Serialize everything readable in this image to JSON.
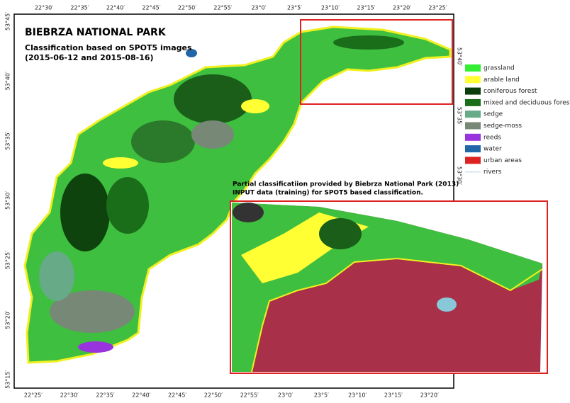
{
  "title": "BIEBRZA NATIONAL PARK",
  "subtitle": [
    "Classification based on SPOT5 images",
    "(2015-06-12 and 2015-08-16)"
  ],
  "legend": [
    {
      "label": "grassland",
      "color": "#33ee33"
    },
    {
      "label": "arable land",
      "color": "#ffff33"
    },
    {
      "label": "coniferous forest",
      "color": "#0a3d0a"
    },
    {
      "label": "mixed and deciduous forest",
      "color": "#1a6e1a"
    },
    {
      "label": "sedge",
      "color": "#66aa88"
    },
    {
      "label": "sedge-moss",
      "color": "#778877"
    },
    {
      "label": "reeds",
      "color": "#9933dd"
    },
    {
      "label": "water",
      "color": "#2266aa"
    },
    {
      "label": "urban areas",
      "color": "#dd2222"
    },
    {
      "label": "rivers",
      "color": "#cfe3f0"
    }
  ],
  "coordinates": {
    "top": [
      "22°30′",
      "22°35′",
      "22°40′",
      "22°45′",
      "22°50′",
      "22°55′",
      "23°0′",
      "23°5′",
      "23°10′",
      "23°15′",
      "23°20′",
      "23°25′"
    ],
    "bottom": [
      "22°25′",
      "22°30′",
      "22°35′",
      "22°40′",
      "22°45′",
      "22°50′",
      "22°55′",
      "23°0′",
      "23°5′",
      "23°10′",
      "23°15′",
      "23°20′"
    ],
    "left": [
      "53°45′",
      "53°40′",
      "53°35′",
      "53°30′",
      "53°25′",
      "53°20′",
      "53°15′"
    ],
    "right": [
      "53°40′",
      "53°35′",
      "53°30′"
    ]
  },
  "inset": {
    "caption": [
      "Partial classificatiion provided by Biebrza National Park (2013)",
      "INPUT data (training) for SPOT5 based classification."
    ]
  }
}
